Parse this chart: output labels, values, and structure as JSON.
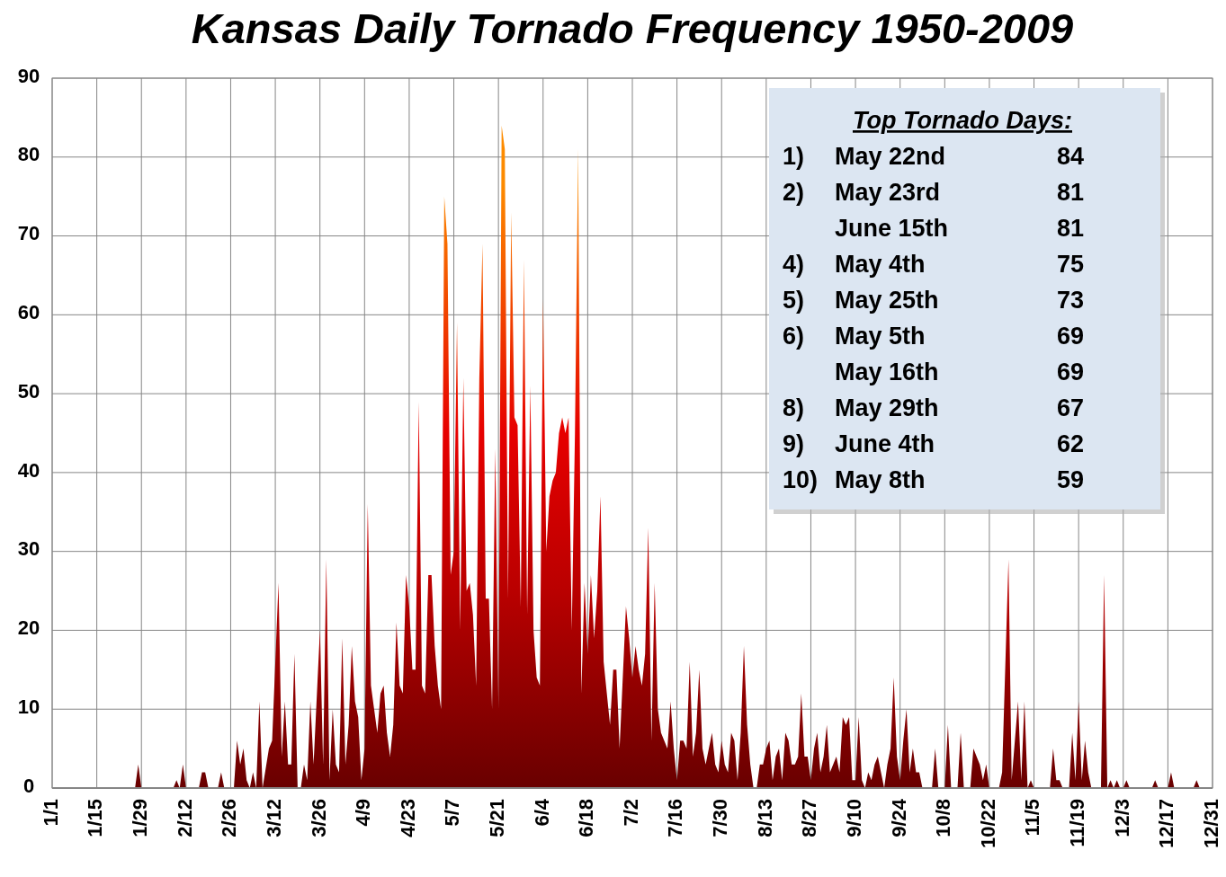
{
  "chart_data": {
    "type": "area",
    "title": "Kansas Daily Tornado Frequency 1950-2009",
    "x": [
      "--01-01",
      "--01-27",
      "--01-28",
      "--01-29",
      "--02-08",
      "--02-09",
      "--02-10",
      "--02-11",
      "--02-12",
      "--02-16",
      "--02-17",
      "--02-18",
      "--02-19",
      "--02-22",
      "--02-23",
      "--02-24",
      "--02-27",
      "--02-28",
      "--03-01",
      "--03-02",
      "--03-03",
      "--03-04",
      "--03-05",
      "--03-06",
      "--03-07",
      "--03-08",
      "--03-10",
      "--03-11",
      "--03-13",
      "--03-14",
      "--03-15",
      "--03-16",
      "--03-17",
      "--03-18",
      "--03-19",
      "--03-20",
      "--03-21",
      "--03-22",
      "--03-23",
      "--03-24",
      "--03-26",
      "--03-27",
      "--03-28",
      "--03-29",
      "--03-30",
      "--03-31",
      "--04-01",
      "--04-02",
      "--04-03",
      "--04-04",
      "--04-05",
      "--04-06",
      "--04-07",
      "--04-08",
      "--04-09",
      "--04-10",
      "--04-11",
      "--04-12",
      "--04-13",
      "--04-14",
      "--04-15",
      "--04-16",
      "--04-17",
      "--04-18",
      "--04-19",
      "--04-20",
      "--04-21",
      "--04-22",
      "--04-23",
      "--04-24",
      "--04-25",
      "--04-26",
      "--04-27",
      "--04-28",
      "--04-29",
      "--04-30",
      "--05-01",
      "--05-02",
      "--05-03",
      "--05-04",
      "--05-05",
      "--05-06",
      "--05-07",
      "--05-08",
      "--05-09",
      "--05-10",
      "--05-11",
      "--05-12",
      "--05-13",
      "--05-14",
      "--05-15",
      "--05-16",
      "--05-17",
      "--05-18",
      "--05-19",
      "--05-20",
      "--05-21",
      "--05-22",
      "--05-23",
      "--05-24",
      "--05-25",
      "--05-26",
      "--05-27",
      "--05-28",
      "--05-29",
      "--05-30",
      "--05-31",
      "--06-01",
      "--06-02",
      "--06-03",
      "--06-04",
      "--06-05",
      "--06-06",
      "--06-07",
      "--06-08",
      "--06-09",
      "--06-10",
      "--06-11",
      "--06-12",
      "--06-13",
      "--06-14",
      "--06-15",
      "--06-16",
      "--06-17",
      "--06-18",
      "--06-19",
      "--06-20",
      "--06-21",
      "--06-22",
      "--06-23",
      "--06-24",
      "--06-25",
      "--06-26",
      "--06-27",
      "--06-28",
      "--06-29",
      "--06-30",
      "--07-01",
      "--07-02",
      "--07-03",
      "--07-04",
      "--07-05",
      "--07-06",
      "--07-07",
      "--07-08",
      "--07-09",
      "--07-10",
      "--07-11",
      "--07-12",
      "--07-13",
      "--07-14",
      "--07-15",
      "--07-16",
      "--07-17",
      "--07-18",
      "--07-19",
      "--07-20",
      "--07-21",
      "--07-22",
      "--07-23",
      "--07-24",
      "--07-25",
      "--07-26",
      "--07-27",
      "--07-28",
      "--07-29",
      "--07-30",
      "--07-31",
      "--08-01",
      "--08-02",
      "--08-03",
      "--08-04",
      "--08-05",
      "--08-06",
      "--08-07",
      "--08-08",
      "--08-09",
      "--08-10",
      "--08-11",
      "--08-12",
      "--08-13",
      "--08-14",
      "--08-15",
      "--08-16",
      "--08-17",
      "--08-18",
      "--08-19",
      "--08-20",
      "--08-21",
      "--08-22",
      "--08-23",
      "--08-24",
      "--08-25",
      "--08-26",
      "--08-27",
      "--08-28",
      "--08-29",
      "--08-30",
      "--08-31",
      "--09-01",
      "--09-02",
      "--09-03",
      "--09-04",
      "--09-05",
      "--09-06",
      "--09-07",
      "--09-08",
      "--09-09",
      "--09-10",
      "--09-11",
      "--09-12",
      "--09-13",
      "--09-14",
      "--09-15",
      "--09-16",
      "--09-17",
      "--09-18",
      "--09-19",
      "--09-20",
      "--09-21",
      "--09-22",
      "--09-23",
      "--09-24",
      "--09-25",
      "--09-26",
      "--09-27",
      "--09-28",
      "--09-29",
      "--09-30",
      "--10-01",
      "--10-04",
      "--10-05",
      "--10-06",
      "--10-08",
      "--10-09",
      "--10-10",
      "--10-12",
      "--10-13",
      "--10-14",
      "--10-16",
      "--10-17",
      "--10-18",
      "--10-19",
      "--10-20",
      "--10-21",
      "--10-22",
      "--10-25",
      "--10-26",
      "--10-28",
      "--10-29",
      "--10-30",
      "--10-31",
      "--11-01",
      "--11-02",
      "--11-03",
      "--11-04",
      "--11-05",
      "--11-10",
      "--11-11",
      "--11-12",
      "--11-13",
      "--11-14",
      "--11-16",
      "--11-17",
      "--11-18",
      "--11-19",
      "--11-20",
      "--11-21",
      "--11-22",
      "--11-23",
      "--11-26",
      "--11-27",
      "--11-28",
      "--11-29",
      "--11-30",
      "--12-01",
      "--12-02",
      "--12-03",
      "--12-04",
      "--12-05",
      "--12-12",
      "--12-13",
      "--12-14",
      "--12-17",
      "--12-18",
      "--12-19",
      "--12-25",
      "--12-26",
      "--12-27",
      "--12-31"
    ],
    "series": [
      {
        "color": "#e60000",
        "values": [
          0,
          0,
          3,
          0,
          0,
          1,
          0,
          3,
          0,
          0,
          2,
          2,
          0,
          0,
          2,
          0,
          0,
          6,
          3,
          5,
          1,
          0,
          2,
          0,
          11,
          0,
          5,
          6,
          26,
          4,
          11,
          3,
          3,
          17,
          0,
          0,
          3,
          1,
          11,
          3,
          20,
          3,
          29,
          1,
          10,
          3,
          2,
          19,
          3,
          8,
          18,
          11,
          9,
          1,
          5,
          36,
          13,
          10,
          7,
          12,
          13,
          7,
          4,
          8,
          21,
          13,
          12,
          27,
          23,
          15,
          15,
          49,
          13,
          12,
          27,
          27,
          18,
          13,
          10,
          75,
          69,
          27,
          30,
          59,
          20,
          52,
          25,
          26,
          22,
          13,
          52,
          69,
          24,
          24,
          10,
          43,
          10,
          84,
          81,
          24,
          73,
          47,
          46,
          23,
          67,
          22,
          51,
          20,
          14,
          13,
          62,
          30,
          37,
          39,
          40,
          45,
          47,
          45,
          47,
          20,
          45,
          81,
          12,
          26,
          17,
          27,
          19,
          25,
          37,
          16,
          12,
          8,
          15,
          15,
          5,
          14,
          23,
          19,
          14,
          18,
          15,
          13,
          17,
          33,
          6,
          26,
          10,
          7,
          6,
          5,
          11,
          5,
          1,
          6,
          6,
          5,
          16,
          4,
          7,
          15,
          5,
          3,
          5,
          7,
          3,
          2,
          6,
          3,
          2,
          7,
          6,
          1,
          7,
          18,
          8,
          3,
          0,
          0,
          3,
          3,
          5,
          6,
          1,
          4,
          5,
          1,
          7,
          6,
          3,
          3,
          4,
          12,
          4,
          4,
          1,
          5,
          7,
          2,
          4,
          8,
          2,
          3,
          4,
          2,
          9,
          8,
          9,
          1,
          1,
          9,
          1,
          0,
          2,
          1,
          3,
          4,
          2,
          0,
          3,
          5,
          14,
          4,
          1,
          6,
          10,
          2,
          5,
          2,
          2,
          0,
          0,
          5,
          0,
          0,
          8,
          0,
          0,
          7,
          0,
          0,
          5,
          4,
          3,
          1,
          3,
          0,
          0,
          2,
          29,
          1,
          6,
          11,
          1,
          11,
          0,
          1,
          0,
          0,
          5,
          1,
          1,
          0,
          0,
          7,
          1,
          11,
          1,
          6,
          2,
          0,
          0,
          27,
          0,
          1,
          0,
          1,
          0,
          0,
          1,
          0,
          0,
          1,
          0,
          0,
          2,
          0,
          0,
          1,
          0,
          0
        ]
      }
    ],
    "ylim": [
      0,
      90
    ],
    "yticks": [
      0,
      10,
      20,
      30,
      40,
      50,
      60,
      70,
      80,
      90
    ],
    "xlim": [
      "--01-01",
      "--12-31"
    ],
    "xticks": [
      {
        "value": "--01-01",
        "label": "1/1"
      },
      {
        "value": "--01-15",
        "label": "1/15"
      },
      {
        "value": "--01-29",
        "label": "1/29"
      },
      {
        "value": "--02-12",
        "label": "2/12"
      },
      {
        "value": "--02-26",
        "label": "2/26"
      },
      {
        "value": "--03-12",
        "label": "3/12"
      },
      {
        "value": "--03-26",
        "label": "3/26"
      },
      {
        "value": "--04-09",
        "label": "4/9"
      },
      {
        "value": "--04-23",
        "label": "4/23"
      },
      {
        "value": "--05-07",
        "label": "5/7"
      },
      {
        "value": "--05-21",
        "label": "5/21"
      },
      {
        "value": "--06-04",
        "label": "6/4"
      },
      {
        "value": "--06-18",
        "label": "6/18"
      },
      {
        "value": "--07-02",
        "label": "7/2"
      },
      {
        "value": "--07-16",
        "label": "7/16"
      },
      {
        "value": "--07-30",
        "label": "7/30"
      },
      {
        "value": "--08-13",
        "label": "8/13"
      },
      {
        "value": "--08-27",
        "label": "8/27"
      },
      {
        "value": "--09-10",
        "label": "9/10"
      },
      {
        "value": "--09-24",
        "label": "9/24"
      },
      {
        "value": "--10-08",
        "label": "10/8"
      },
      {
        "value": "--10-22",
        "label": "10/22"
      },
      {
        "value": "--11-05",
        "label": "11/5"
      },
      {
        "value": "--11-19",
        "label": "11/19"
      },
      {
        "value": "--12-03",
        "label": "12/3"
      },
      {
        "value": "--12-17",
        "label": "12/17"
      },
      {
        "value": "--12-31",
        "label": "12/31"
      }
    ],
    "grid": true,
    "annotations": [
      "Top Tornado  Days:",
      "1)\tMay 22nd\t84",
      "2)\tMay 23rd\t81",
      "\tJune 15th\t81",
      "4)\tMay 4th\t75",
      "5)\tMay 25th\t73",
      "6)\tMay 5th\t69",
      "\tMay 16th\t69",
      "8)\tMay 29th\t67",
      "9)\tJune 4th\t62",
      "10)\tMay 8th\t59"
    ]
  }
}
